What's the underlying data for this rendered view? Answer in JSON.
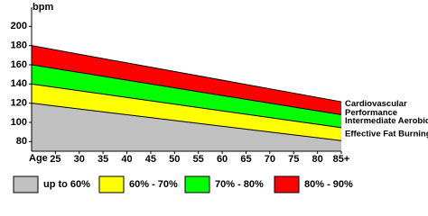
{
  "chart_data": {
    "type": "area",
    "y_label": "bpm",
    "x_label": "Age",
    "x": [
      20,
      85
    ],
    "xlim": [
      20,
      85
    ],
    "xticks": [
      25,
      30,
      35,
      40,
      45,
      50,
      55,
      60,
      65,
      70,
      75,
      80,
      {
        "value": 85,
        "label": "85+"
      }
    ],
    "ylim": [
      70,
      220
    ],
    "yticks": [
      80,
      100,
      120,
      140,
      160,
      180,
      200
    ],
    "grid": false,
    "legend": "bottom",
    "series": [
      {
        "name": "up to 60%",
        "color": "#c0c0c0",
        "values": [
          120,
          81
        ]
      },
      {
        "name": "60% - 70%",
        "color": "#ffff00",
        "values": [
          140,
          94.5
        ]
      },
      {
        "name": "70% - 80%",
        "color": "#00ff00",
        "values": [
          160,
          108
        ]
      },
      {
        "name": "80% - 90%",
        "color": "#ff0000",
        "values": [
          180,
          121.5
        ]
      }
    ],
    "annotations": [
      {
        "lines": [
          "Cardiovascular",
          "Performance"
        ]
      },
      {
        "lines": [
          "Intermediate Aerobic"
        ]
      },
      {
        "lines": [
          "Effective Fat Burning"
        ]
      }
    ]
  }
}
